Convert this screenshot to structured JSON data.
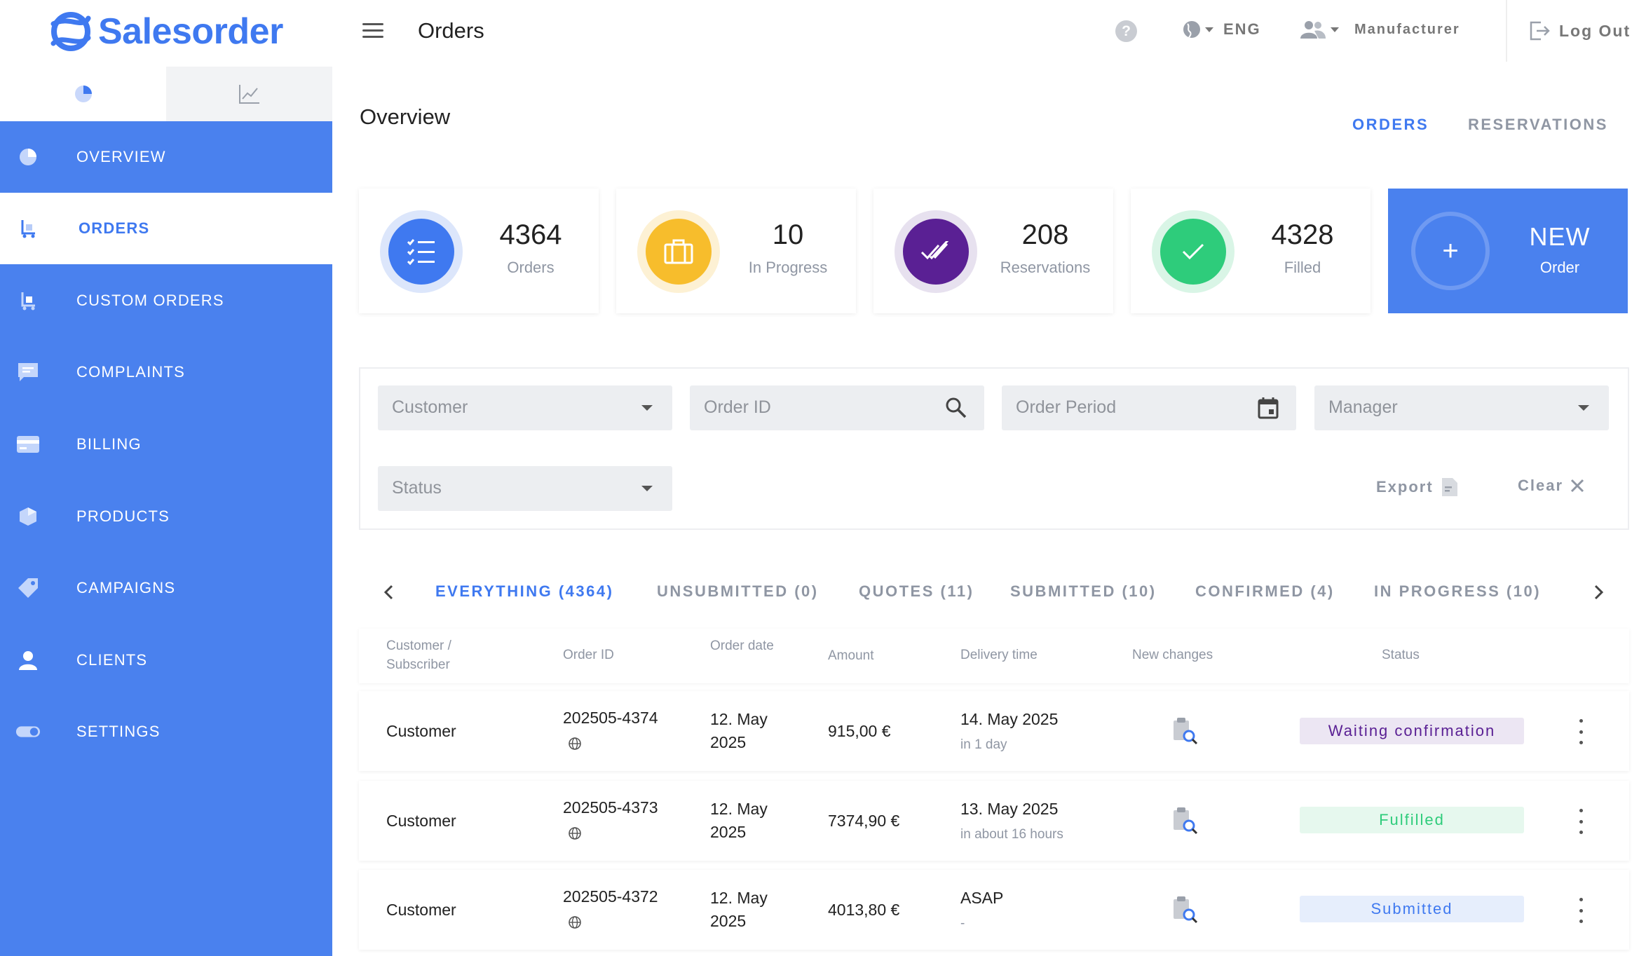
{
  "app": {
    "brand": "Salesorder"
  },
  "header": {
    "page_title": "Orders",
    "help_label": "?",
    "language": "ENG",
    "role": "Manufacturer",
    "logout": "Log Out"
  },
  "sidebar": {
    "items": [
      {
        "label": "OVERVIEW",
        "icon": "pie-chart-icon",
        "active": false
      },
      {
        "label": "ORDERS",
        "icon": "cart-icon",
        "active": true
      },
      {
        "label": "CUSTOM ORDERS",
        "icon": "custom-cart-icon",
        "active": false
      },
      {
        "label": "COMPLAINTS",
        "icon": "chat-icon",
        "active": false
      },
      {
        "label": "BILLING",
        "icon": "credit-card-icon",
        "active": false
      },
      {
        "label": "PRODUCTS",
        "icon": "box-icon",
        "active": false
      },
      {
        "label": "CAMPAIGNS",
        "icon": "tag-icon",
        "active": false
      },
      {
        "label": "CLIENTS",
        "icon": "person-icon",
        "active": false
      },
      {
        "label": "SETTINGS",
        "icon": "toggle-icon",
        "active": false
      }
    ]
  },
  "overview": {
    "title": "Overview",
    "tabs": [
      {
        "label": "ORDERS",
        "active": true
      },
      {
        "label": "RESERVATIONS",
        "active": false
      }
    ]
  },
  "stats": [
    {
      "value": "4364",
      "label": "Orders",
      "icon": "checklist-icon",
      "color": "#3f79f0",
      "ring": "#dce6fb"
    },
    {
      "value": "10",
      "label": "In Progress",
      "icon": "briefcase-icon",
      "color": "#f7bd2c",
      "ring": "#fdf1d4"
    },
    {
      "value": "208",
      "label": "Reservations",
      "icon": "double-check-icon",
      "color": "#5a2094",
      "ring": "#e7e1ef"
    },
    {
      "value": "4328",
      "label": "Filled",
      "icon": "check-icon",
      "color": "#2ecc7b",
      "ring": "#d9f5e6"
    }
  ],
  "new_order": {
    "title": "NEW",
    "subtitle": "Order",
    "plus": "+"
  },
  "filters": {
    "customer": "Customer",
    "order_id": "Order ID",
    "order_period": "Order Period",
    "manager": "Manager",
    "status": "Status",
    "export": "Export",
    "clear": "Clear"
  },
  "status_tabs": [
    {
      "label": "EVERYTHING (4364)",
      "active": true
    },
    {
      "label": "UNSUBMITTED (0)",
      "active": false
    },
    {
      "label": "QUOTES (11)",
      "active": false
    },
    {
      "label": "SUBMITTED (10)",
      "active": false
    },
    {
      "label": "CONFIRMED (4)",
      "active": false
    },
    {
      "label": "IN PROGRESS (10)",
      "active": false
    }
  ],
  "table": {
    "headers": {
      "customer_line1": "Customer /",
      "customer_line2": "Subscriber",
      "order_id": "Order ID",
      "order_date": "Order date",
      "amount": "Amount",
      "delivery": "Delivery time",
      "changes": "New changes",
      "status": "Status"
    },
    "rows": [
      {
        "customer": "Customer",
        "order_id": "202505-4374",
        "date_line1": "12. May",
        "date_line2": "2025",
        "amount": "915,00 €",
        "delivery": "14. May 2025",
        "delivery_sub": "in 1 day",
        "status": "Waiting confirmation",
        "status_color": "#5a2094",
        "status_bg": "#ece6f3"
      },
      {
        "customer": "Customer",
        "order_id": "202505-4373",
        "date_line1": "12. May",
        "date_line2": "2025",
        "amount": "7374,90 €",
        "delivery": "13. May 2025",
        "delivery_sub": "in about 16 hours",
        "status": "Fulfilled",
        "status_color": "#2ecc7b",
        "status_bg": "#e6f8ee"
      },
      {
        "customer": "Customer",
        "order_id": "202505-4372",
        "date_line1": "12. May",
        "date_line2": "2025",
        "amount": "4013,80 €",
        "delivery": "ASAP",
        "delivery_sub": "-",
        "status": "Submitted",
        "status_color": "#3f79f0",
        "status_bg": "#e6eefc"
      }
    ]
  }
}
